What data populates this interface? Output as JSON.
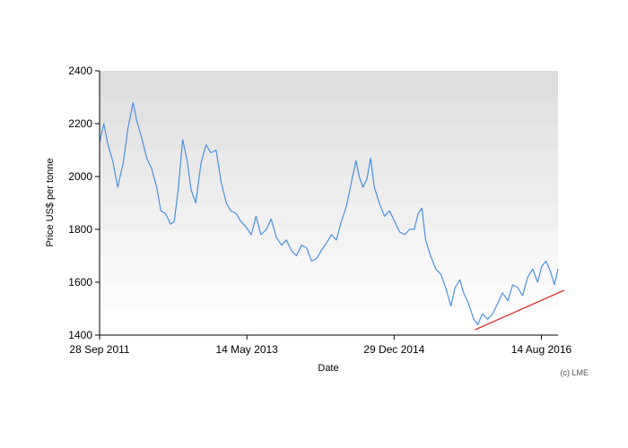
{
  "chart_data": {
    "type": "line",
    "title": "",
    "xlabel": "Date",
    "ylabel": "Price US$ per tonne",
    "credit": "(c) LME",
    "x_range": [
      "2011-09-28",
      "2016-10-20"
    ],
    "ylim": [
      1400,
      2400
    ],
    "y_ticks": [
      {
        "value": 1400,
        "label": "1400"
      },
      {
        "value": 1600,
        "label": "1600"
      },
      {
        "value": 1800,
        "label": "1800"
      },
      {
        "value": 2000,
        "label": "2000"
      },
      {
        "value": 2200,
        "label": "2200"
      },
      {
        "value": 2400,
        "label": "2400"
      }
    ],
    "x_ticks": [
      {
        "date": "2011-09-28",
        "label": "28 Sep 2011"
      },
      {
        "date": "2013-05-14",
        "label": "14 May 2013"
      },
      {
        "date": "2014-12-29",
        "label": "29 Dec 2014"
      },
      {
        "date": "2016-08-14",
        "label": "14 Aug 2016"
      }
    ],
    "background": "gradient bands, dark grey at top fading to white at bottom",
    "series": [
      {
        "color": "#4a90e2",
        "points": [
          [
            "2011-09-28",
            2130
          ],
          [
            "2011-10-15",
            2200
          ],
          [
            "2011-11-01",
            2120
          ],
          [
            "2011-11-20",
            2060
          ],
          [
            "2011-12-10",
            1960
          ],
          [
            "2012-01-01",
            2050
          ],
          [
            "2012-01-20",
            2180
          ],
          [
            "2012-02-10",
            2280
          ],
          [
            "2012-02-25",
            2210
          ],
          [
            "2012-03-15",
            2150
          ],
          [
            "2012-04-05",
            2070
          ],
          [
            "2012-04-25",
            2030
          ],
          [
            "2012-05-15",
            1960
          ],
          [
            "2012-06-01",
            1870
          ],
          [
            "2012-06-20",
            1860
          ],
          [
            "2012-07-10",
            1820
          ],
          [
            "2012-07-25",
            1830
          ],
          [
            "2012-08-10",
            1950
          ],
          [
            "2012-08-28",
            2140
          ],
          [
            "2012-09-15",
            2060
          ],
          [
            "2012-10-01",
            1950
          ],
          [
            "2012-10-20",
            1900
          ],
          [
            "2012-11-10",
            2050
          ],
          [
            "2012-11-30",
            2120
          ],
          [
            "2012-12-20",
            2090
          ],
          [
            "2013-01-10",
            2100
          ],
          [
            "2013-01-30",
            1980
          ],
          [
            "2013-02-20",
            1900
          ],
          [
            "2013-03-10",
            1870
          ],
          [
            "2013-04-01",
            1860
          ],
          [
            "2013-04-20",
            1830
          ],
          [
            "2013-05-10",
            1810
          ],
          [
            "2013-06-01",
            1780
          ],
          [
            "2013-06-20",
            1850
          ],
          [
            "2013-07-10",
            1780
          ],
          [
            "2013-08-01",
            1800
          ],
          [
            "2013-08-20",
            1840
          ],
          [
            "2013-09-10",
            1770
          ],
          [
            "2013-10-01",
            1740
          ],
          [
            "2013-10-20",
            1760
          ],
          [
            "2013-11-10",
            1720
          ],
          [
            "2013-11-30",
            1700
          ],
          [
            "2013-12-20",
            1740
          ],
          [
            "2014-01-10",
            1730
          ],
          [
            "2014-01-30",
            1680
          ],
          [
            "2014-02-20",
            1690
          ],
          [
            "2014-03-10",
            1720
          ],
          [
            "2014-04-01",
            1750
          ],
          [
            "2014-04-20",
            1780
          ],
          [
            "2014-05-10",
            1760
          ],
          [
            "2014-05-30",
            1830
          ],
          [
            "2014-06-20",
            1890
          ],
          [
            "2014-07-10",
            1980
          ],
          [
            "2014-07-28",
            2060
          ],
          [
            "2014-08-10",
            2000
          ],
          [
            "2014-08-25",
            1960
          ],
          [
            "2014-09-10",
            1990
          ],
          [
            "2014-09-25",
            2070
          ],
          [
            "2014-10-10",
            1960
          ],
          [
            "2014-10-30",
            1900
          ],
          [
            "2014-11-20",
            1850
          ],
          [
            "2014-12-10",
            1870
          ],
          [
            "2014-12-31",
            1830
          ],
          [
            "2015-01-20",
            1790
          ],
          [
            "2015-02-10",
            1780
          ],
          [
            "2015-03-01",
            1800
          ],
          [
            "2015-03-20",
            1800
          ],
          [
            "2015-04-05",
            1860
          ],
          [
            "2015-04-20",
            1880
          ],
          [
            "2015-05-05",
            1760
          ],
          [
            "2015-05-25",
            1700
          ],
          [
            "2015-06-15",
            1650
          ],
          [
            "2015-07-05",
            1630
          ],
          [
            "2015-07-25",
            1580
          ],
          [
            "2015-08-15",
            1510
          ],
          [
            "2015-09-01",
            1580
          ],
          [
            "2015-09-20",
            1610
          ],
          [
            "2015-10-05",
            1560
          ],
          [
            "2015-10-25",
            1520
          ],
          [
            "2015-11-15",
            1460
          ],
          [
            "2015-12-01",
            1440
          ],
          [
            "2015-12-20",
            1480
          ],
          [
            "2016-01-10",
            1460
          ],
          [
            "2016-01-30",
            1480
          ],
          [
            "2016-02-20",
            1520
          ],
          [
            "2016-03-10",
            1560
          ],
          [
            "2016-04-01",
            1530
          ],
          [
            "2016-04-20",
            1590
          ],
          [
            "2016-05-10",
            1580
          ],
          [
            "2016-05-30",
            1550
          ],
          [
            "2016-06-20",
            1620
          ],
          [
            "2016-07-10",
            1650
          ],
          [
            "2016-07-30",
            1600
          ],
          [
            "2016-08-15",
            1660
          ],
          [
            "2016-09-01",
            1680
          ],
          [
            "2016-09-20",
            1640
          ],
          [
            "2016-10-05",
            1590
          ],
          [
            "2016-10-20",
            1650
          ]
        ]
      }
    ],
    "trendline": {
      "color": "#e02020",
      "from": [
        "2015-11-20",
        1420
      ],
      "to": [
        "2016-11-15",
        1570
      ]
    }
  }
}
